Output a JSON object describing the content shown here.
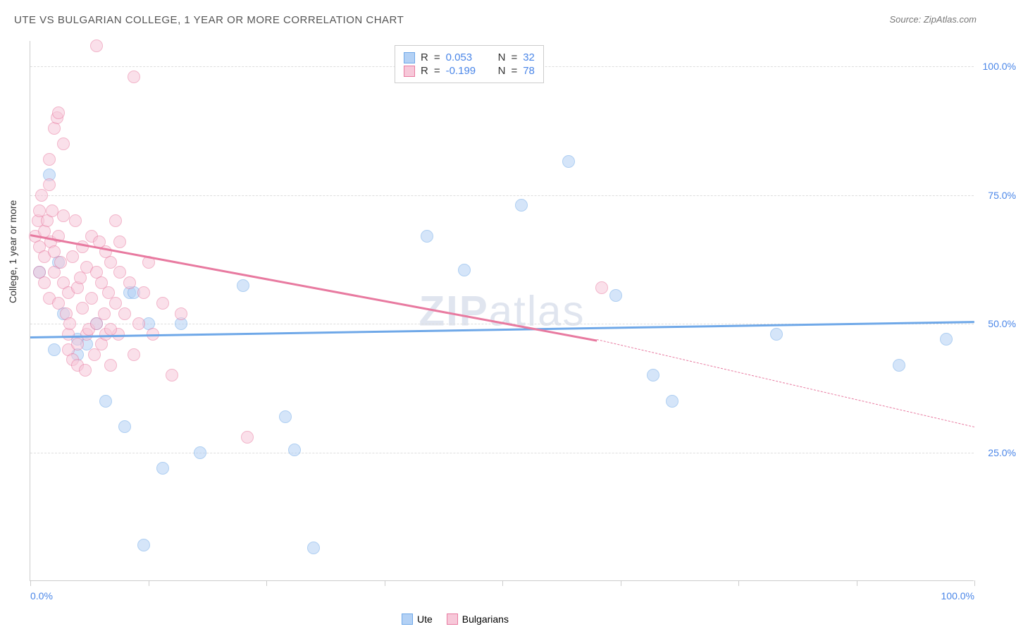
{
  "title": "UTE VS BULGARIAN COLLEGE, 1 YEAR OR MORE CORRELATION CHART",
  "source": "Source: ZipAtlas.com",
  "y_axis": {
    "label": "College, 1 year or more"
  },
  "chart": {
    "type": "scatter",
    "plot": {
      "xlim": [
        0,
        100
      ],
      "ylim": [
        0,
        105
      ]
    },
    "grid_y": [
      25,
      50,
      75,
      100
    ],
    "grid_labels": [
      "25.0%",
      "50.0%",
      "75.0%",
      "100.0%"
    ],
    "x_ticks": [
      0,
      12.5,
      25,
      37.5,
      50,
      62.5,
      75,
      87.5,
      100
    ],
    "x_labels": {
      "min": "0.0%",
      "max": "100.0%"
    },
    "grid_color": "#dddddd",
    "axis_color": "#cccccc",
    "background_color": "#ffffff",
    "tick_label_color": "#4a86e8",
    "marker_radius": 9,
    "marker_opacity": 0.55,
    "series": [
      {
        "name": "Ute",
        "color": "#6fa8e8",
        "fill": "#b3d1f5",
        "stroke": "#6fa8e8",
        "R": "0.053",
        "N": "32",
        "trend": {
          "x0": 0,
          "y0": 47.5,
          "x1": 100,
          "y1": 50.5,
          "width": 3
        },
        "points": [
          [
            1,
            60
          ],
          [
            2,
            79
          ],
          [
            2.5,
            45
          ],
          [
            3,
            62
          ],
          [
            3.5,
            52
          ],
          [
            5,
            47
          ],
          [
            5,
            44
          ],
          [
            6,
            46
          ],
          [
            7,
            50
          ],
          [
            8,
            35
          ],
          [
            10,
            30
          ],
          [
            10.5,
            56
          ],
          [
            11,
            56
          ],
          [
            12,
            7
          ],
          [
            12.5,
            50
          ],
          [
            14,
            22
          ],
          [
            16,
            50
          ],
          [
            18,
            25
          ],
          [
            22.5,
            57.5
          ],
          [
            27,
            32
          ],
          [
            28,
            25.5
          ],
          [
            30,
            6.5
          ],
          [
            42,
            67
          ],
          [
            46,
            60.5
          ],
          [
            52,
            73
          ],
          [
            57,
            81.5
          ],
          [
            62,
            55.5
          ],
          [
            66,
            40
          ],
          [
            68,
            35
          ],
          [
            79,
            48
          ],
          [
            92,
            42
          ],
          [
            97,
            47
          ]
        ]
      },
      {
        "name": "Bulgarians",
        "color": "#e87aa0",
        "fill": "#f7c8d9",
        "stroke": "#e87aa0",
        "R": "-0.199",
        "N": "78",
        "trend": {
          "x0": 0,
          "y0": 67.5,
          "x1": 60,
          "y1": 47,
          "width": 3
        },
        "trend_ext": {
          "x0": 60,
          "y0": 47,
          "x1": 100,
          "y1": 30
        },
        "points": [
          [
            0.5,
            67
          ],
          [
            0.8,
            70
          ],
          [
            1,
            65
          ],
          [
            1,
            60
          ],
          [
            1,
            72
          ],
          [
            1.2,
            75
          ],
          [
            1.5,
            63
          ],
          [
            1.5,
            68
          ],
          [
            1.5,
            58
          ],
          [
            1.8,
            70
          ],
          [
            2,
            55
          ],
          [
            2,
            77
          ],
          [
            2,
            82
          ],
          [
            2.2,
            66
          ],
          [
            2.3,
            72
          ],
          [
            2.5,
            60
          ],
          [
            2.5,
            64
          ],
          [
            2.5,
            88
          ],
          [
            2.8,
            90
          ],
          [
            3,
            91
          ],
          [
            3,
            54
          ],
          [
            3,
            67
          ],
          [
            3.2,
            62
          ],
          [
            3.5,
            58
          ],
          [
            3.5,
            71
          ],
          [
            3.5,
            85
          ],
          [
            3.8,
            52
          ],
          [
            4,
            45
          ],
          [
            4,
            56
          ],
          [
            4,
            48
          ],
          [
            4.2,
            50
          ],
          [
            4.5,
            43
          ],
          [
            4.5,
            63
          ],
          [
            4.8,
            70
          ],
          [
            5,
            42
          ],
          [
            5,
            57
          ],
          [
            5,
            46
          ],
          [
            5.3,
            59
          ],
          [
            5.5,
            53
          ],
          [
            5.5,
            65
          ],
          [
            5.8,
            41
          ],
          [
            6,
            48
          ],
          [
            6,
            61
          ],
          [
            6.2,
            49
          ],
          [
            6.5,
            55
          ],
          [
            6.5,
            67
          ],
          [
            6.8,
            44
          ],
          [
            7,
            60
          ],
          [
            7,
            50
          ],
          [
            7.3,
            66
          ],
          [
            7.5,
            58
          ],
          [
            7.5,
            46
          ],
          [
            7.8,
            52
          ],
          [
            8,
            64
          ],
          [
            8,
            48
          ],
          [
            8.3,
            56
          ],
          [
            8.5,
            62
          ],
          [
            8.5,
            42
          ],
          [
            9,
            54
          ],
          [
            9,
            70
          ],
          [
            9.3,
            48
          ],
          [
            9.5,
            60
          ],
          [
            7,
            104
          ],
          [
            11,
            98
          ],
          [
            8.5,
            49
          ],
          [
            10,
            52
          ],
          [
            10.5,
            58
          ],
          [
            11,
            44
          ],
          [
            11.5,
            50
          ],
          [
            12,
            56
          ],
          [
            12.5,
            62
          ],
          [
            13,
            48
          ],
          [
            14,
            54
          ],
          [
            15,
            40
          ],
          [
            16,
            52
          ],
          [
            23,
            28
          ],
          [
            9.5,
            66
          ],
          [
            60.5,
            57
          ]
        ]
      }
    ]
  },
  "legend_top": {
    "rows": [
      {
        "swatch_fill": "#b3d1f5",
        "swatch_border": "#6fa8e8",
        "R_label": "R",
        "R_eq": "=",
        "R_val": "0.053",
        "N_label": "N",
        "N_eq": "=",
        "N_val": "32"
      },
      {
        "swatch_fill": "#f7c8d9",
        "swatch_border": "#e87aa0",
        "R_label": "R",
        "R_eq": "=",
        "R_val": "-0.199",
        "N_label": "N",
        "N_eq": "=",
        "N_val": "78"
      }
    ]
  },
  "legend_bottom": {
    "items": [
      {
        "swatch_fill": "#b3d1f5",
        "swatch_border": "#6fa8e8",
        "label": "Ute"
      },
      {
        "swatch_fill": "#f7c8d9",
        "swatch_border": "#e87aa0",
        "label": "Bulgarians"
      }
    ]
  },
  "watermark": {
    "bold": "ZIP",
    "rest": "atlas"
  }
}
